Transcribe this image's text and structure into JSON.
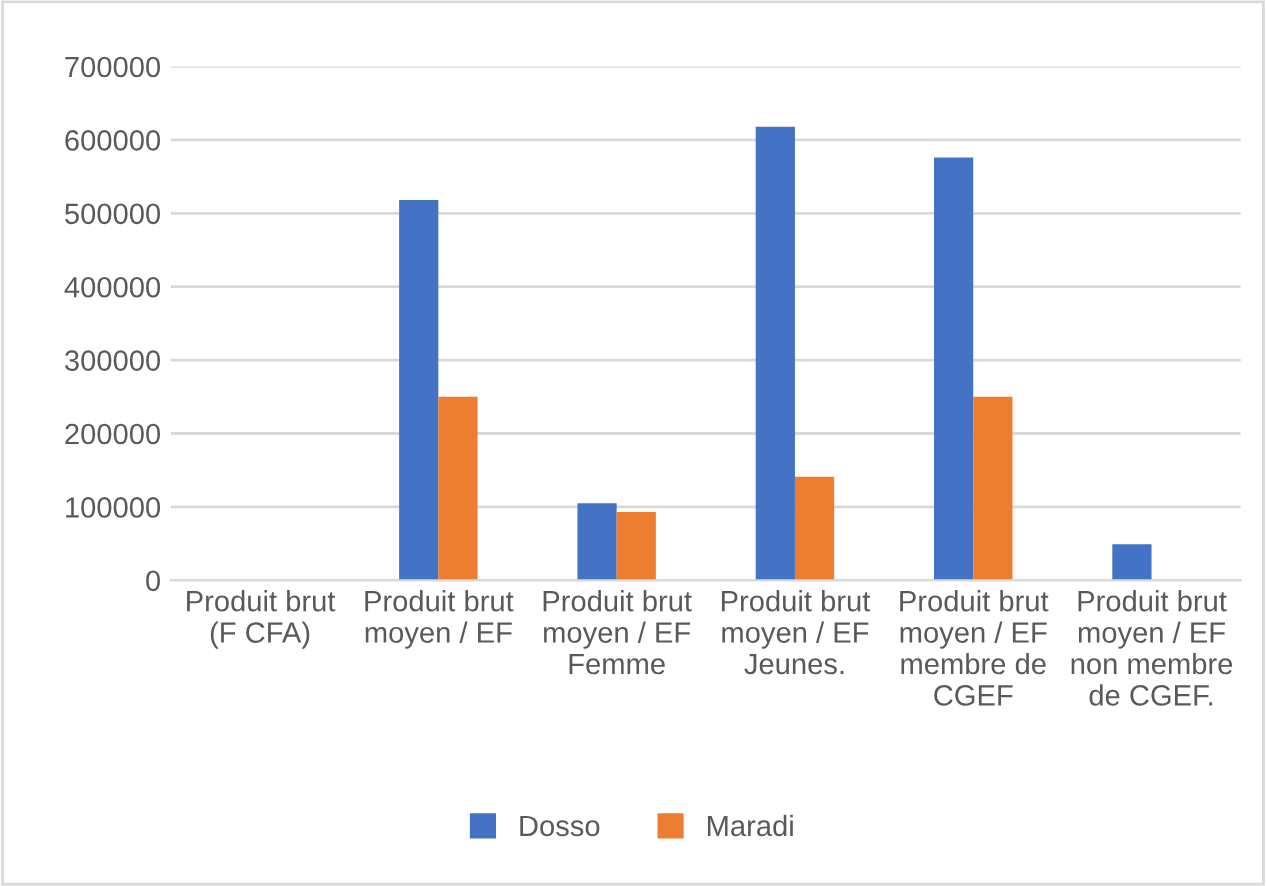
{
  "chart_data": {
    "type": "bar",
    "categories": [
      "Produit brut (F CFA)",
      "Produit brut moyen / EF",
      "Produit brut moyen / EF Femme",
      "Produit brut moyen / EF Jeunes.",
      "Produit brut moyen / EF membre de CGEF",
      "Produit brut moyen / EF non membre de CGEF."
    ],
    "series": [
      {
        "name": "Dosso",
        "color": "#4472c4",
        "values": [
          null,
          518000,
          105000,
          618000,
          576000,
          49000
        ]
      },
      {
        "name": "Maradi",
        "color": "#ed7d31",
        "values": [
          null,
          250000,
          93000,
          141000,
          250000,
          null
        ]
      }
    ],
    "ylim": [
      0,
      700000
    ],
    "yticks": [
      0,
      100000,
      200000,
      300000,
      400000,
      500000,
      600000,
      700000
    ],
    "grid": "y",
    "legend": "bottom"
  }
}
